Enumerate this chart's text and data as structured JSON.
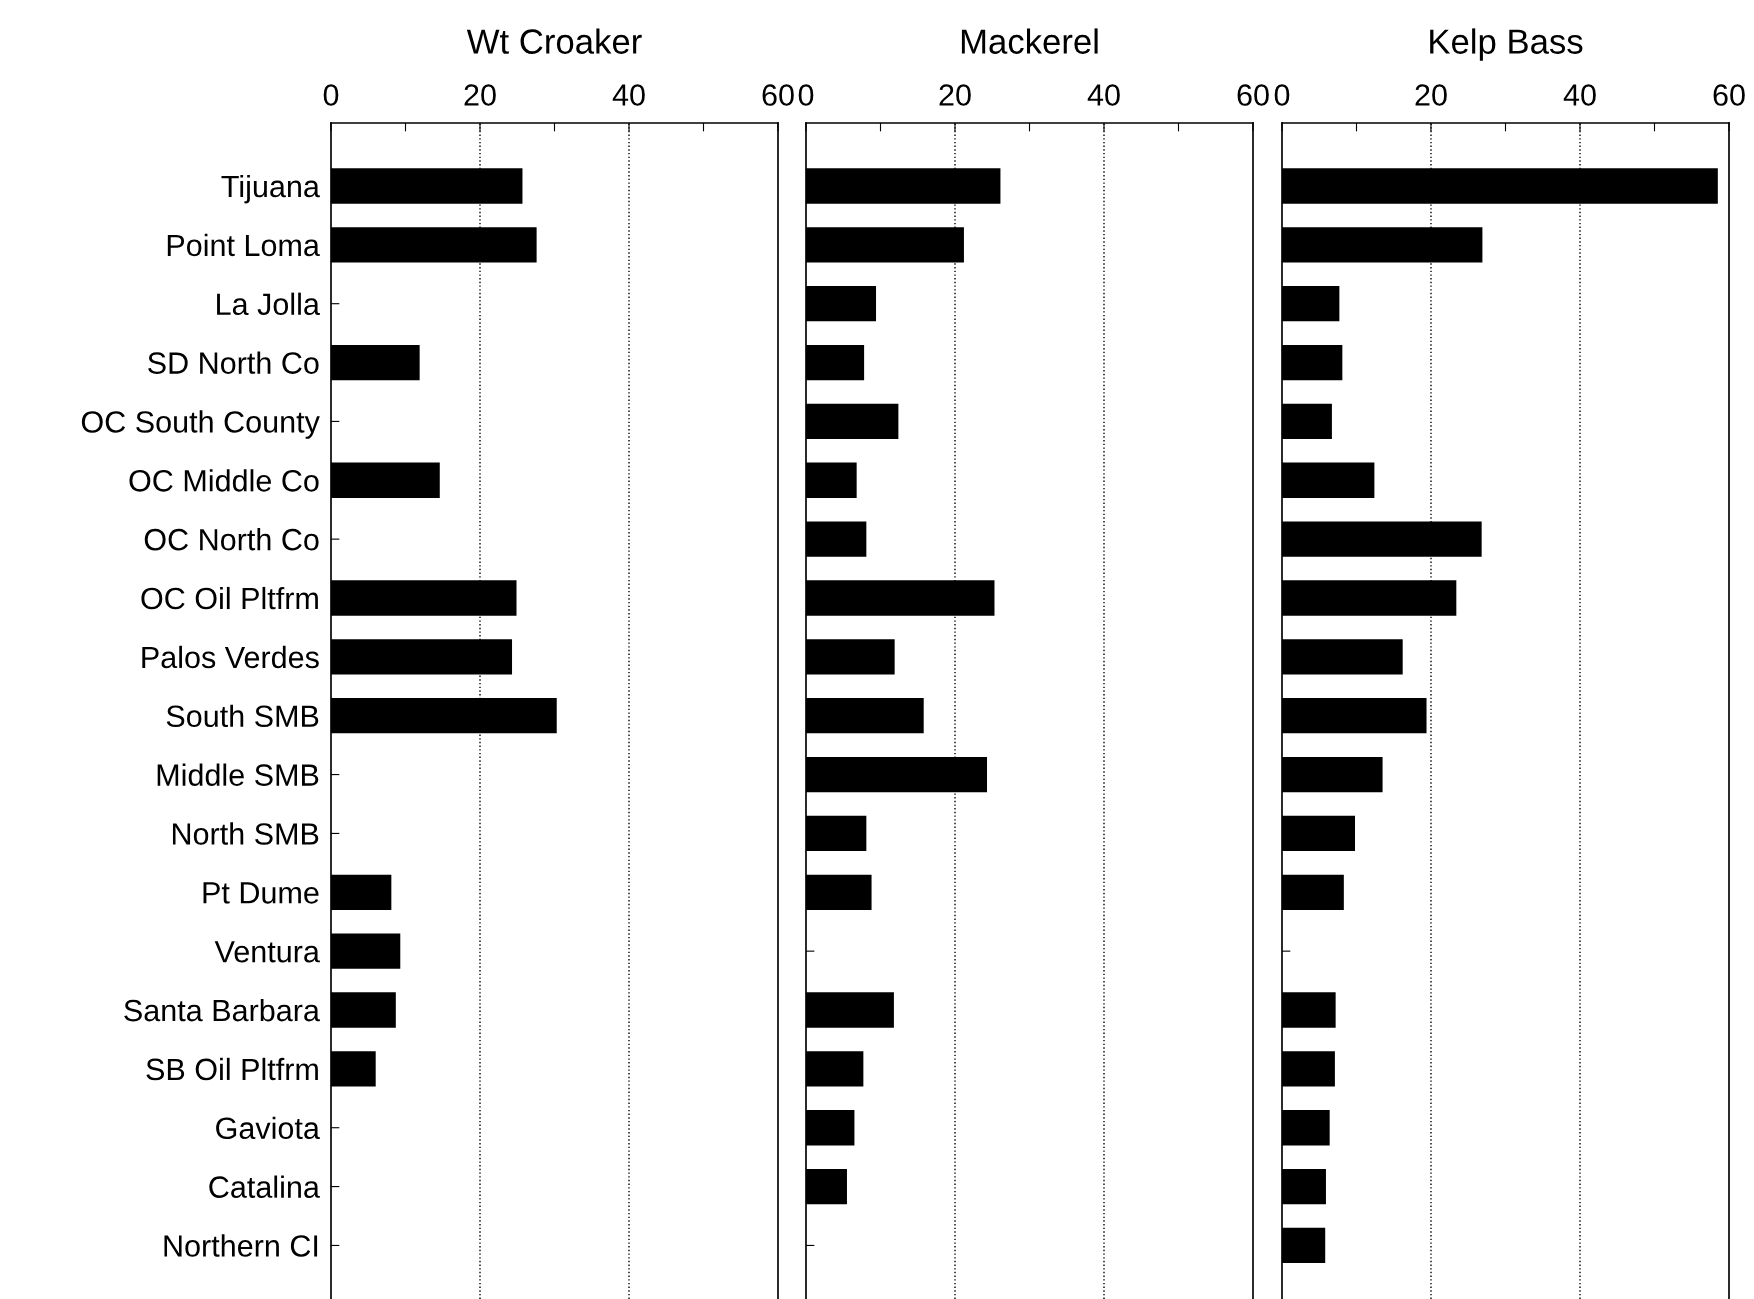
{
  "chart_data": [
    {
      "type": "bar",
      "orientation": "horizontal",
      "title": "Wt Croaker",
      "color": "#000000",
      "grid": "x",
      "categories": [
        "Tijuana",
        "Point Loma",
        "La Jolla",
        "SD North Co",
        "OC South County",
        "OC Middle Co",
        "OC North Co",
        "OC Oil Pltfrm",
        "Palos Verdes",
        "South SMB",
        "Middle SMB",
        "North SMB",
        "Pt Dume",
        "Ventura",
        "Santa Barbara",
        "SB Oil Pltfrm",
        "Gaviota",
        "Catalina",
        "Northern CI"
      ],
      "values": [
        25.7,
        27.6,
        null,
        11.9,
        null,
        14.6,
        null,
        24.9,
        24.3,
        30.3,
        null,
        null,
        8.1,
        9.3,
        8.7,
        6.0,
        null,
        null,
        null
      ],
      "xlim": [
        0,
        60
      ],
      "xticks": [
        0,
        {
          "value": 10,
          "label": null
        },
        20,
        {
          "value": 30,
          "label": null
        },
        40,
        {
          "value": 50,
          "label": null
        },
        60
      ]
    },
    {
      "type": "bar",
      "orientation": "horizontal",
      "title": "Mackerel",
      "color": "#000000",
      "grid": "x",
      "tick_labels": "x",
      "categories": [
        null,
        null,
        null,
        null,
        null,
        null,
        null,
        null,
        null,
        null,
        null,
        null,
        null,
        null,
        null,
        null,
        null,
        null,
        null
      ],
      "values": [
        26.1,
        21.2,
        9.4,
        7.8,
        12.4,
        6.8,
        8.1,
        25.3,
        11.9,
        15.8,
        24.3,
        8.1,
        8.8,
        null,
        11.8,
        7.7,
        6.5,
        5.5,
        null
      ],
      "xlim": [
        0,
        60
      ],
      "xticks": [
        0,
        {
          "value": 10,
          "label": null
        },
        20,
        {
          "value": 30,
          "label": null
        },
        40,
        {
          "value": 50,
          "label": null
        },
        60
      ]
    },
    {
      "type": "bar",
      "orientation": "horizontal",
      "title": "Kelp Bass",
      "color": "#000000",
      "grid": "x",
      "tick_labels": "x",
      "categories": [
        null,
        null,
        null,
        null,
        null,
        null,
        null,
        null,
        null,
        null,
        null,
        null,
        null,
        null,
        null,
        null,
        null,
        null,
        null
      ],
      "values": [
        58.5,
        26.9,
        7.7,
        8.1,
        6.7,
        12.4,
        26.8,
        23.4,
        16.2,
        19.4,
        13.5,
        9.8,
        8.3,
        null,
        7.2,
        7.1,
        6.4,
        5.9,
        5.8
      ],
      "xlim": [
        0,
        60
      ],
      "xticks": [
        0,
        {
          "value": 10,
          "label": null
        },
        20,
        {
          "value": 30,
          "label": null
        },
        40,
        {
          "value": 50,
          "label": null
        },
        60
      ]
    }
  ]
}
